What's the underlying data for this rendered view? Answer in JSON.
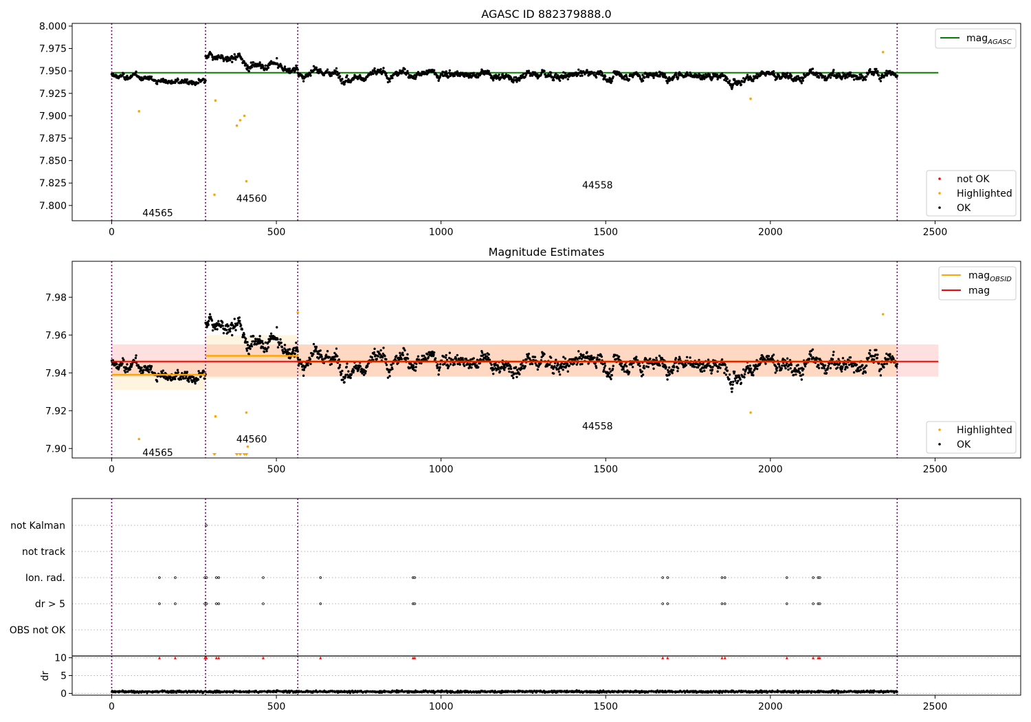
{
  "chart_data": [
    {
      "type": "scatter",
      "title": "AGASC ID 882379888.0",
      "xlim": [
        -120,
        2760
      ],
      "ylim": [
        7.783,
        8.003
      ],
      "x_ticks": [
        "0",
        "500",
        "1000",
        "1500",
        "2000",
        "2500"
      ],
      "y_ticks": [
        "7.800",
        "7.825",
        "7.850",
        "7.875",
        "7.900",
        "7.925",
        "7.950",
        "7.975",
        "8.000"
      ],
      "obs_boundaries": [
        0,
        285,
        565,
        2385
      ],
      "obs_labels": [
        {
          "text": "44565",
          "x": 140,
          "y": 7.792
        },
        {
          "text": "44560",
          "x": 425,
          "y": 7.808
        },
        {
          "text": "44558",
          "x": 1475,
          "y": 7.823
        }
      ],
      "reference_lines": [
        {
          "name": "mag_AGASC",
          "y": 7.948,
          "x_range": [
            0,
            2510
          ],
          "color": "#008000"
        }
      ],
      "series": [
        {
          "name": "not OK",
          "color": "#ff0000",
          "points": []
        },
        {
          "name": "Highlighted",
          "color": "#ffa500",
          "points": [
            [
              83,
              7.905
            ],
            [
              315,
              7.917
            ],
            [
              312,
              7.812
            ],
            [
              380,
              7.889
            ],
            [
              390,
              7.895
            ],
            [
              403,
              7.9
            ],
            [
              409,
              7.827
            ],
            [
              1940,
              7.919
            ],
            [
              2342,
              7.971
            ]
          ]
        },
        {
          "name": "OK",
          "color": "#000000",
          "segments": [
            {
              "x0": 0,
              "x1": 285,
              "n": 220,
              "base": 7.94,
              "trend": -0.009,
              "noise": 0.0045
            },
            {
              "x0": 285,
              "x1": 565,
              "n": 230,
              "base": 7.958,
              "trend": -0.015,
              "noise": 0.006
            },
            {
              "x0": 565,
              "x1": 2385,
              "n": 1350,
              "base": 7.946,
              "trend": -0.002,
              "noise": 0.0065
            }
          ]
        }
      ],
      "legend_upper": [
        {
          "label": "mag",
          "sub": "AGASC",
          "color": "#008000"
        }
      ],
      "legend_lower": [
        "not OK",
        "Highlighted",
        "OK"
      ]
    },
    {
      "type": "scatter",
      "title": "Magnitude Estimates",
      "xlim": [
        -120,
        2760
      ],
      "ylim": [
        7.895,
        7.999
      ],
      "x_ticks": [
        "0",
        "500",
        "1000",
        "1500",
        "2000",
        "2500"
      ],
      "y_ticks": [
        "7.90",
        "7.92",
        "7.94",
        "7.96",
        "7.98"
      ],
      "obs_boundaries": [
        0,
        285,
        565,
        2385
      ],
      "obs_labels": [
        {
          "text": "44565",
          "x": 140,
          "y": 7.898
        },
        {
          "text": "44560",
          "x": 425,
          "y": 7.905
        },
        {
          "text": "44558",
          "x": 1475,
          "y": 7.912
        }
      ],
      "mag_band": {
        "x_range": [
          0,
          2510
        ],
        "y_range": [
          7.938,
          7.955
        ],
        "line": 7.946,
        "color": "#ff0000"
      },
      "obsid_mags": [
        {
          "x_range": [
            0,
            285
          ],
          "y": 7.939,
          "band": [
            7.931,
            7.947
          ]
        },
        {
          "x_range": [
            285,
            565
          ],
          "y": 7.949,
          "band": [
            7.937,
            7.96
          ]
        },
        {
          "x_range": [
            565,
            2385
          ],
          "y": 7.946,
          "band": [
            7.938,
            7.955
          ]
        }
      ],
      "series": [
        {
          "name": "Highlighted",
          "color": "#ffa500",
          "points": [
            [
              83,
              7.905
            ],
            [
              315,
              7.917
            ],
            [
              409,
              7.919
            ],
            [
              413,
              7.901
            ],
            [
              565,
              7.972
            ],
            [
              1940,
              7.919
            ],
            [
              2342,
              7.971
            ]
          ],
          "below_range_x": [
            312,
            380,
            390,
            403,
            409
          ]
        },
        {
          "name": "OK",
          "color": "#000000",
          "segments": [
            {
              "x0": 0,
              "x1": 285,
              "n": 220,
              "base": 7.94,
              "trend": -0.009,
              "noise": 0.0045
            },
            {
              "x0": 285,
              "x1": 565,
              "n": 230,
              "base": 7.958,
              "trend": -0.015,
              "noise": 0.006
            },
            {
              "x0": 565,
              "x1": 2385,
              "n": 1350,
              "base": 7.946,
              "trend": -0.002,
              "noise": 0.0065
            }
          ]
        }
      ],
      "legend_upper": [
        {
          "label": "mag",
          "sub": "OBSID",
          "color": "#ffa500"
        },
        {
          "label": "mag",
          "sub": "",
          "color": "#ff0000"
        }
      ],
      "legend_lower": [
        "Highlighted",
        "OK"
      ]
    },
    {
      "type": "scatter",
      "xlim": [
        -120,
        2760
      ],
      "x_ticks": [
        "0",
        "500",
        "1000",
        "1500",
        "2000",
        "2500"
      ],
      "flag_labels": [
        "not Kalman",
        "not track",
        "Ion. rad.",
        "dr > 5",
        "OBS not OK"
      ],
      "obs_boundaries": [
        0,
        285,
        565,
        2385
      ],
      "flag_points": [
        {
          "flag": "not Kalman",
          "x": [
            287
          ]
        },
        {
          "flag": "Ion. rad.",
          "x": [
            145,
            193,
            283,
            288,
            318,
            325,
            460,
            634,
            915,
            920,
            1673,
            1688,
            1853,
            1862,
            2050,
            2130,
            2145,
            2150
          ]
        },
        {
          "flag": "dr > 5",
          "x": [
            145,
            193,
            283,
            288,
            318,
            325,
            460,
            634,
            915,
            920,
            1673,
            1688,
            1853,
            1862,
            2050,
            2130,
            2145,
            2150
          ]
        }
      ],
      "dr": {
        "ylabel": "dr",
        "ylim": [
          -0.5,
          10.5
        ],
        "y_ticks": [
          "0",
          "5",
          "10"
        ],
        "threshold": 10,
        "clipped_x": [
          145,
          193,
          283,
          288,
          318,
          325,
          460,
          634,
          915,
          920,
          1673,
          1688,
          1853,
          1862,
          2050,
          2130,
          2145,
          2150
        ],
        "noise": {
          "x0": 0,
          "x1": 2385,
          "n": 1800,
          "base": 0.5,
          "noise": 0.25
        }
      }
    }
  ]
}
